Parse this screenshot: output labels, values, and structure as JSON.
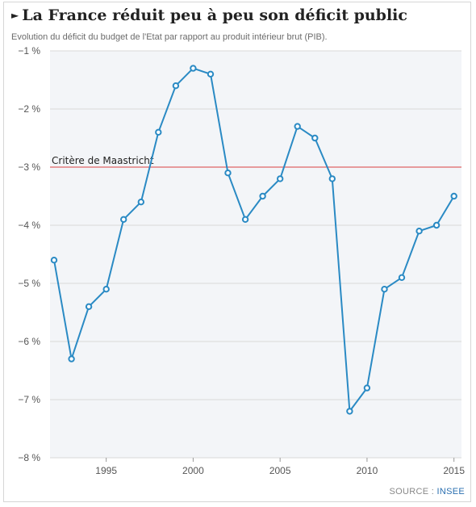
{
  "title": "La France réduit peu à peu son déficit public",
  "subtitle": "Evolution du déficit du budget de l'Etat par rapport au produit intérieur brut (PIB).",
  "source_label": "SOURCE :",
  "source_name": "INSEE",
  "colors": {
    "line": "#2a8ac4",
    "reference": "#e06666",
    "grid": "#d9d9d9",
    "background": "#f3f5f8"
  },
  "chart_data": {
    "type": "line",
    "title": "La France réduit peu à peu son déficit public",
    "xlabel": "",
    "ylabel": "",
    "x_ticks": [
      1995,
      2000,
      2005,
      2010,
      2015
    ],
    "y_ticks": [
      -1,
      -2,
      -3,
      -4,
      -5,
      -6,
      -7,
      -8
    ],
    "y_tick_labels": [
      "−1 %",
      "−2 %",
      "−3 %",
      "−4 %",
      "−5 %",
      "−6 %",
      "−7 %",
      "−8 %"
    ],
    "xlim": [
      1992,
      2015.2
    ],
    "ylim": [
      -8,
      -1
    ],
    "grid": true,
    "annotation": {
      "label": "Critère de Maastricht",
      "y": -3
    },
    "series": [
      {
        "x": [
          1992,
          1993,
          1994,
          1995,
          1996,
          1997,
          1998,
          1999,
          2000,
          2001,
          2002,
          2003,
          2004,
          2005,
          2006,
          2007,
          2008,
          2009,
          2010,
          2011,
          2012,
          2013,
          2014,
          2015
        ],
        "values": [
          -4.6,
          -6.3,
          -5.4,
          -5.1,
          -3.9,
          -3.6,
          -2.4,
          -1.6,
          -1.3,
          -1.4,
          -3.1,
          -3.9,
          -3.5,
          -3.2,
          -2.3,
          -2.5,
          -3.2,
          -7.2,
          -6.8,
          -5.1,
          -4.9,
          -4.1,
          -4.0,
          -3.5
        ]
      }
    ]
  }
}
